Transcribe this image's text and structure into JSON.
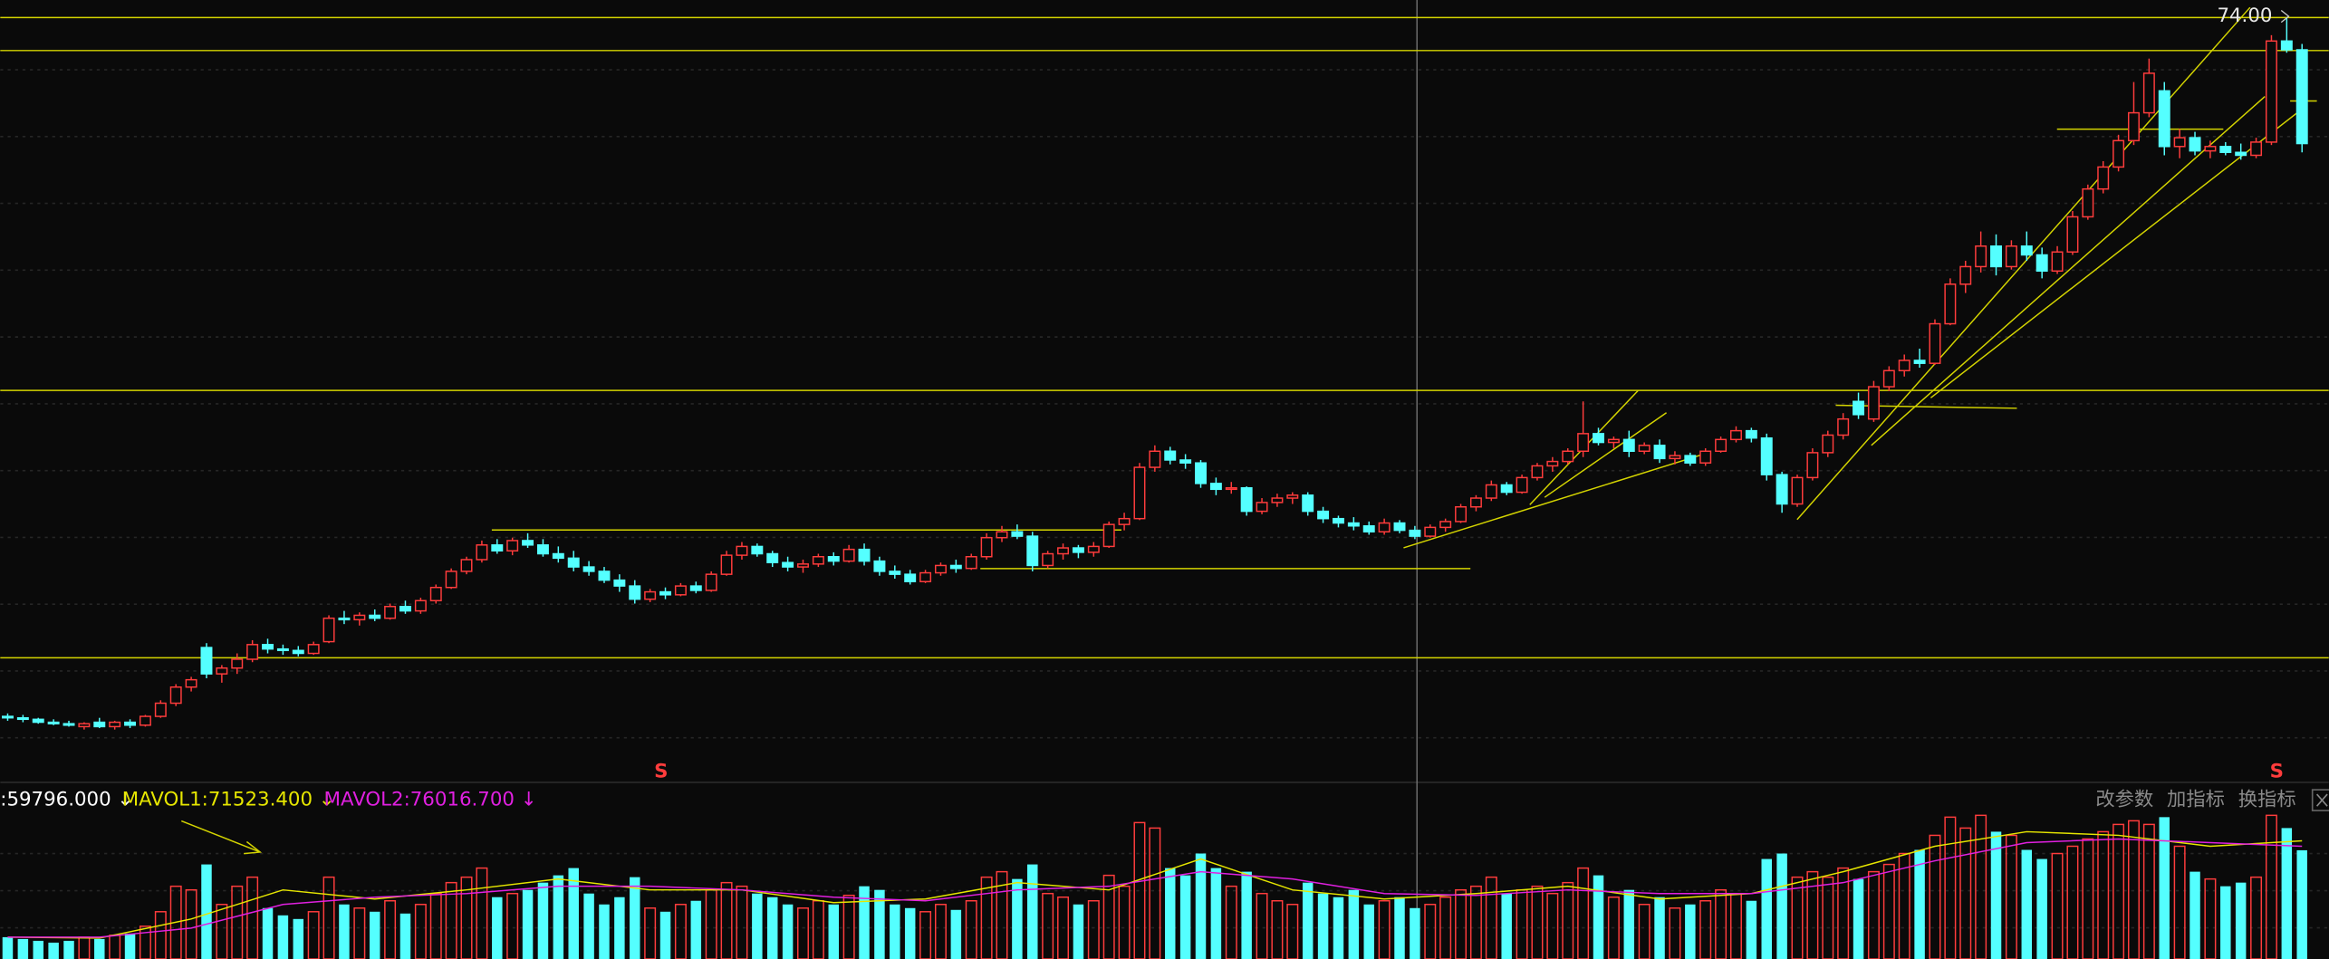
{
  "chart_data": {
    "type": "candlestick",
    "ylim": [
      22,
      75.2
    ],
    "up_color": "#ff3c3c",
    "down_color": "#54ffff",
    "line_color": "#d4d400",
    "hlines": [
      {
        "value": 74,
        "label": "74.00"
      },
      71.75,
      48.55,
      30.3
    ],
    "sell_marker": "S",
    "candles": [
      [
        26.3,
        26.5,
        26.0,
        26.2,
        12000
      ],
      [
        26.2,
        26.4,
        25.9,
        26.1,
        11000
      ],
      [
        26.1,
        26.2,
        25.8,
        25.9,
        10000
      ],
      [
        25.9,
        26.1,
        25.7,
        25.8,
        9000
      ],
      [
        25.8,
        26.0,
        25.6,
        25.7,
        10000
      ],
      [
        25.6,
        25.9,
        25.4,
        25.8,
        12000
      ],
      [
        25.9,
        26.2,
        25.5,
        25.6,
        11000
      ],
      [
        25.6,
        26.0,
        25.4,
        25.9,
        13000
      ],
      [
        25.9,
        26.1,
        25.5,
        25.7,
        14000
      ],
      [
        25.7,
        26.4,
        25.6,
        26.3,
        18000
      ],
      [
        26.3,
        27.4,
        26.2,
        27.2,
        26000
      ],
      [
        27.2,
        28.5,
        27.0,
        28.3,
        40000
      ],
      [
        28.3,
        29.0,
        28.0,
        28.8,
        38000
      ],
      [
        31.0,
        31.3,
        28.9,
        29.2,
        52000
      ],
      [
        29.2,
        29.8,
        28.6,
        29.6,
        30000
      ],
      [
        29.6,
        30.6,
        29.2,
        30.2,
        40000
      ],
      [
        30.2,
        31.5,
        30.0,
        31.2,
        45000
      ],
      [
        31.2,
        31.6,
        30.6,
        30.9,
        28000
      ],
      [
        30.9,
        31.2,
        30.5,
        30.8,
        24000
      ],
      [
        30.8,
        31.1,
        30.4,
        30.6,
        22000
      ],
      [
        30.6,
        31.4,
        30.5,
        31.2,
        26000
      ],
      [
        31.4,
        33.2,
        31.3,
        33.0,
        45000
      ],
      [
        33.0,
        33.5,
        32.6,
        32.9,
        30000
      ],
      [
        32.9,
        33.4,
        32.5,
        33.2,
        28000
      ],
      [
        33.2,
        33.6,
        32.8,
        33.0,
        26000
      ],
      [
        33.0,
        34.0,
        32.9,
        33.8,
        32000
      ],
      [
        33.8,
        34.2,
        33.3,
        33.5,
        25000
      ],
      [
        33.5,
        34.4,
        33.3,
        34.2,
        30000
      ],
      [
        34.2,
        35.3,
        34.0,
        35.1,
        36000
      ],
      [
        35.1,
        36.4,
        35.0,
        36.2,
        42000
      ],
      [
        36.2,
        37.2,
        36.0,
        37.0,
        45000
      ],
      [
        37.0,
        38.3,
        36.8,
        38.0,
        50000
      ],
      [
        38.0,
        38.4,
        37.4,
        37.6,
        34000
      ],
      [
        37.6,
        38.5,
        37.3,
        38.3,
        36000
      ],
      [
        38.3,
        38.8,
        37.8,
        38.0,
        38000
      ],
      [
        38.0,
        38.4,
        37.2,
        37.4,
        42000
      ],
      [
        37.4,
        37.9,
        36.8,
        37.1,
        46000
      ],
      [
        37.1,
        37.6,
        36.2,
        36.5,
        50000
      ],
      [
        36.5,
        36.9,
        35.9,
        36.2,
        36000
      ],
      [
        36.2,
        36.5,
        35.4,
        35.6,
        30000
      ],
      [
        35.6,
        36.0,
        34.8,
        35.2,
        34000
      ],
      [
        35.2,
        35.6,
        34.0,
        34.3,
        45000
      ],
      [
        34.3,
        35.0,
        34.1,
        34.8,
        28000
      ],
      [
        34.8,
        35.1,
        34.3,
        34.6,
        26000
      ],
      [
        34.6,
        35.4,
        34.5,
        35.2,
        30000
      ],
      [
        35.2,
        35.5,
        34.7,
        34.9,
        32000
      ],
      [
        34.9,
        36.2,
        34.8,
        36.0,
        38000
      ],
      [
        36.0,
        37.6,
        35.9,
        37.3,
        42000
      ],
      [
        37.3,
        38.2,
        37.0,
        37.9,
        40000
      ],
      [
        37.9,
        38.1,
        37.2,
        37.4,
        36000
      ],
      [
        37.4,
        37.6,
        36.5,
        36.8,
        34000
      ],
      [
        36.8,
        37.2,
        36.2,
        36.5,
        30000
      ],
      [
        36.5,
        37.0,
        36.1,
        36.7,
        28000
      ],
      [
        36.7,
        37.4,
        36.5,
        37.2,
        32000
      ],
      [
        37.2,
        37.5,
        36.6,
        36.9,
        30000
      ],
      [
        36.9,
        38.0,
        36.8,
        37.7,
        35000
      ],
      [
        37.7,
        38.1,
        36.6,
        36.9,
        40000
      ],
      [
        36.9,
        37.2,
        35.9,
        36.2,
        38000
      ],
      [
        36.2,
        36.6,
        35.7,
        36.0,
        30000
      ],
      [
        36.0,
        36.3,
        35.3,
        35.5,
        28000
      ],
      [
        35.5,
        36.3,
        35.4,
        36.1,
        26000
      ],
      [
        36.1,
        36.8,
        35.9,
        36.6,
        30000
      ],
      [
        36.6,
        37.0,
        36.1,
        36.4,
        27000
      ],
      [
        36.4,
        37.4,
        36.3,
        37.2,
        32000
      ],
      [
        37.2,
        38.8,
        37.0,
        38.5,
        45000
      ],
      [
        38.5,
        39.3,
        38.2,
        38.9,
        48000
      ],
      [
        38.9,
        39.4,
        38.4,
        38.6,
        44000
      ],
      [
        38.6,
        38.9,
        36.2,
        36.6,
        52000
      ],
      [
        36.6,
        37.6,
        36.4,
        37.4,
        36000
      ],
      [
        37.4,
        38.1,
        37.0,
        37.8,
        34000
      ],
      [
        37.8,
        38.0,
        37.1,
        37.5,
        30000
      ],
      [
        37.5,
        38.2,
        37.2,
        37.9,
        32000
      ],
      [
        37.9,
        39.6,
        37.8,
        39.4,
        46000
      ],
      [
        39.4,
        40.2,
        39.0,
        39.8,
        40000
      ],
      [
        39.8,
        43.6,
        39.7,
        43.3,
        75000
      ],
      [
        43.3,
        44.8,
        43.0,
        44.4,
        72000
      ],
      [
        44.4,
        44.7,
        43.5,
        43.8,
        50000
      ],
      [
        43.8,
        44.2,
        43.2,
        43.6,
        46000
      ],
      [
        43.6,
        43.8,
        41.9,
        42.2,
        58000
      ],
      [
        42.2,
        42.6,
        41.4,
        41.8,
        50000
      ],
      [
        41.8,
        42.3,
        41.5,
        41.9,
        40000
      ],
      [
        41.9,
        42.0,
        40.0,
        40.3,
        48000
      ],
      [
        40.3,
        41.2,
        40.1,
        40.9,
        36000
      ],
      [
        40.9,
        41.5,
        40.6,
        41.2,
        32000
      ],
      [
        41.2,
        41.6,
        40.8,
        41.4,
        30000
      ],
      [
        41.4,
        41.6,
        40.0,
        40.3,
        42000
      ],
      [
        40.3,
        40.6,
        39.5,
        39.8,
        36000
      ],
      [
        39.8,
        40.0,
        39.2,
        39.5,
        34000
      ],
      [
        39.5,
        39.9,
        39.0,
        39.3,
        38000
      ],
      [
        39.3,
        39.6,
        38.7,
        38.9,
        30000
      ],
      [
        38.9,
        39.8,
        38.7,
        39.5,
        32000
      ],
      [
        39.5,
        39.7,
        38.8,
        39.0,
        34000
      ],
      [
        39.0,
        39.3,
        38.4,
        38.6,
        28000
      ],
      [
        38.6,
        39.4,
        38.5,
        39.2,
        30000
      ],
      [
        39.2,
        39.8,
        38.9,
        39.6,
        34000
      ],
      [
        39.6,
        40.8,
        39.5,
        40.6,
        38000
      ],
      [
        40.6,
        41.4,
        40.3,
        41.2,
        40000
      ],
      [
        41.2,
        42.4,
        41.0,
        42.1,
        45000
      ],
      [
        42.1,
        42.3,
        41.4,
        41.6,
        36000
      ],
      [
        41.6,
        42.8,
        41.5,
        42.6,
        38000
      ],
      [
        42.6,
        43.6,
        42.4,
        43.4,
        40000
      ],
      [
        43.4,
        44.0,
        43.0,
        43.7,
        36000
      ],
      [
        43.7,
        44.6,
        43.5,
        44.4,
        42000
      ],
      [
        44.4,
        47.8,
        44.0,
        45.6,
        50000
      ],
      [
        45.6,
        46.0,
        44.8,
        45.0,
        46000
      ],
      [
        45.0,
        45.4,
        44.6,
        45.2,
        34000
      ],
      [
        45.2,
        45.8,
        44.0,
        44.4,
        38000
      ],
      [
        44.4,
        45.0,
        44.2,
        44.8,
        30000
      ],
      [
        44.8,
        45.2,
        43.6,
        43.9,
        34000
      ],
      [
        43.9,
        44.4,
        43.5,
        44.1,
        28000
      ],
      [
        44.1,
        44.3,
        43.4,
        43.6,
        30000
      ],
      [
        43.6,
        44.6,
        43.4,
        44.4,
        32000
      ],
      [
        44.4,
        45.4,
        44.3,
        45.2,
        38000
      ],
      [
        45.2,
        46.1,
        45.0,
        45.8,
        36000
      ],
      [
        45.8,
        46.0,
        45.0,
        45.3,
        32000
      ],
      [
        45.3,
        45.6,
        42.4,
        42.8,
        55000
      ],
      [
        42.8,
        43.0,
        40.2,
        40.8,
        58000
      ],
      [
        40.8,
        42.8,
        40.6,
        42.6,
        45000
      ],
      [
        42.6,
        44.6,
        42.4,
        44.3,
        48000
      ],
      [
        44.3,
        45.8,
        44.0,
        45.5,
        45000
      ],
      [
        45.5,
        47.0,
        45.2,
        46.6,
        50000
      ],
      [
        47.8,
        48.4,
        46.6,
        46.9,
        44000
      ],
      [
        46.6,
        49.2,
        46.4,
        48.8,
        48000
      ],
      [
        48.8,
        50.2,
        48.5,
        49.9,
        52000
      ],
      [
        49.9,
        51.0,
        49.5,
        50.6,
        58000
      ],
      [
        50.6,
        51.4,
        50.1,
        50.4,
        60000
      ],
      [
        50.4,
        53.4,
        50.3,
        53.1,
        68000
      ],
      [
        53.1,
        56.2,
        53.0,
        55.8,
        78000
      ],
      [
        55.8,
        57.4,
        55.2,
        57.0,
        72000
      ],
      [
        57.0,
        59.4,
        56.6,
        58.4,
        79000
      ],
      [
        58.4,
        59.2,
        56.4,
        57.0,
        70000
      ],
      [
        57.0,
        58.8,
        56.8,
        58.4,
        68000
      ],
      [
        58.4,
        59.4,
        57.4,
        57.8,
        60000
      ],
      [
        57.8,
        58.3,
        56.2,
        56.7,
        55000
      ],
      [
        56.7,
        58.4,
        56.5,
        58.0,
        58000
      ],
      [
        58.0,
        60.8,
        57.8,
        60.4,
        62000
      ],
      [
        60.4,
        62.6,
        60.2,
        62.3,
        66000
      ],
      [
        62.3,
        64.2,
        62.0,
        63.8,
        70000
      ],
      [
        63.8,
        66.0,
        63.5,
        65.6,
        74000
      ],
      [
        65.6,
        69.6,
        65.3,
        67.5,
        76000
      ],
      [
        67.5,
        71.2,
        67.2,
        70.2,
        74000
      ],
      [
        69.0,
        69.6,
        64.6,
        65.2,
        78000
      ],
      [
        65.2,
        66.4,
        64.4,
        65.8,
        62000
      ],
      [
        65.8,
        66.2,
        64.6,
        64.9,
        48000
      ],
      [
        64.9,
        65.6,
        64.4,
        65.2,
        44000
      ],
      [
        65.2,
        65.5,
        64.6,
        64.8,
        40000
      ],
      [
        64.8,
        65.4,
        64.3,
        64.6,
        42000
      ],
      [
        64.6,
        65.8,
        64.4,
        65.5,
        45000
      ],
      [
        65.5,
        72.8,
        65.3,
        72.4,
        79000
      ],
      [
        72.4,
        74.0,
        71.6,
        71.8,
        72000
      ],
      [
        71.8,
        72.2,
        64.8,
        65.4,
        59796
      ]
    ],
    "volume": {
      "ylim": [
        0,
        80000
      ],
      "label": ":59796.000 ↓",
      "ma": [
        {
          "name": "MAVOL1:71523.400 ↓",
          "color": "#e6e600",
          "x": [
            0,
            6,
            12,
            18,
            24,
            30,
            36,
            42,
            48,
            54,
            60,
            66,
            72,
            78,
            84,
            90,
            96,
            102,
            108,
            114,
            120,
            126,
            132,
            138,
            144,
            150
          ],
          "values": [
            12000,
            11500,
            22000,
            38000,
            33000,
            38000,
            44000,
            38000,
            38000,
            31000,
            33000,
            42000,
            38000,
            55000,
            38000,
            33000,
            36000,
            40000,
            33000,
            36000,
            48000,
            62000,
            70000,
            68000,
            62000,
            65000
          ]
        },
        {
          "name": "MAVOL2:76016.700 ↓",
          "color": "#e020e0",
          "x": [
            0,
            6,
            12,
            18,
            24,
            30,
            36,
            42,
            48,
            54,
            60,
            66,
            72,
            78,
            84,
            90,
            96,
            102,
            108,
            114,
            120,
            126,
            132,
            138,
            144,
            150
          ],
          "values": [
            12000,
            12000,
            17000,
            30000,
            34000,
            36000,
            40000,
            40000,
            38000,
            34000,
            32000,
            38000,
            40000,
            48000,
            44000,
            36000,
            35000,
            38000,
            36000,
            36000,
            42000,
            54000,
            64000,
            66000,
            64000,
            62000
          ]
        }
      ]
    },
    "buttons": [
      "改参数",
      "加指标",
      "换指标"
    ]
  }
}
